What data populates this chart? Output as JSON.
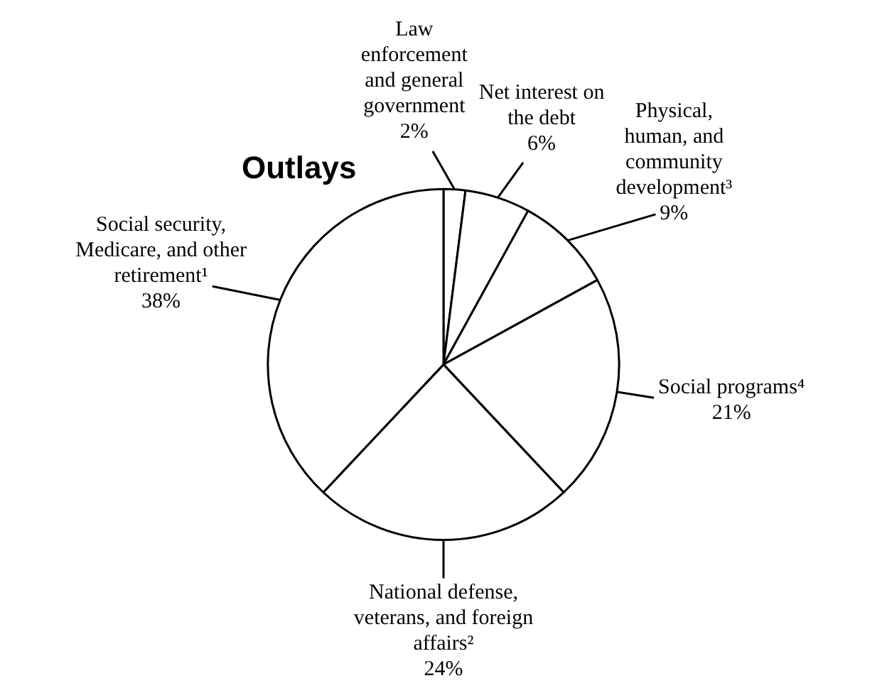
{
  "chart_data": {
    "type": "pie",
    "title": "Outlays",
    "categories": [
      "Law enforcement and general government",
      "Net interest on the debt",
      "Physical, human, and community development³",
      "Social programs⁴",
      "National defense, veterans, and foreign affairs²",
      "Social security, Medicare, and other retirement¹"
    ],
    "values": [
      2,
      6,
      9,
      21,
      24,
      38
    ],
    "colors": [
      "#ffffff",
      "#ffffff",
      "#ffffff",
      "#ffffff",
      "#ffffff",
      "#ffffff"
    ],
    "value_labels": [
      "2%",
      "6%",
      "9%",
      "21%",
      "24%",
      "38%"
    ],
    "legend": false
  }
}
